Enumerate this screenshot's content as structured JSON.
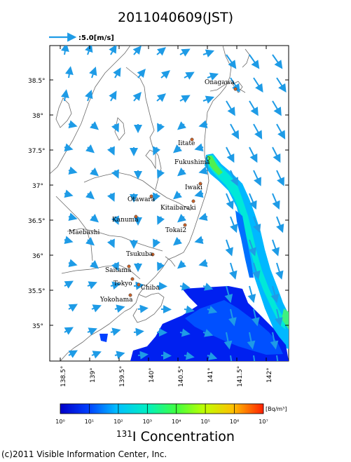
{
  "header": {
    "title": "2011040609(JST)"
  },
  "wind_reference": {
    "label": ":5.0[m/s]"
  },
  "axes": {
    "lat_labels": [
      "38.5°",
      "38°",
      "37.5°",
      "37°",
      "36.5°",
      "36°",
      "35.5°",
      "35°"
    ],
    "lon_labels": [
      "138.5°",
      "139°",
      "139.5°",
      "140°",
      "140.5°",
      "141°",
      "141.5°",
      "142°"
    ]
  },
  "cities": [
    {
      "name": "Onagawa"
    },
    {
      "name": "Iitate"
    },
    {
      "name": "Fukushima"
    },
    {
      "name": "Iwaki"
    },
    {
      "name": "Otawara"
    },
    {
      "name": "Kitaibaraki"
    },
    {
      "name": "Kanuma"
    },
    {
      "name": "Tokai2"
    },
    {
      "name": "Maebashi"
    },
    {
      "name": "Tsukuba"
    },
    {
      "name": "Saitama"
    },
    {
      "name": "Tokyo"
    },
    {
      "name": "Chiba"
    },
    {
      "name": "Yokohama"
    }
  ],
  "colorbar": {
    "unit": "[Bq/m³]",
    "tick_labels": [
      "10⁰",
      "10¹",
      "10²",
      "10³",
      "10⁴",
      "10⁵",
      "10⁶",
      "10⁷"
    ],
    "title_sup": "131",
    "title_main": "I Concentration"
  },
  "footer": {
    "copyright": "(c)2011 Visible Information Center, Inc."
  },
  "colors": {
    "arrow": "#1e9be6",
    "land_line": "#666666",
    "city_dot": "#c9622a"
  }
}
